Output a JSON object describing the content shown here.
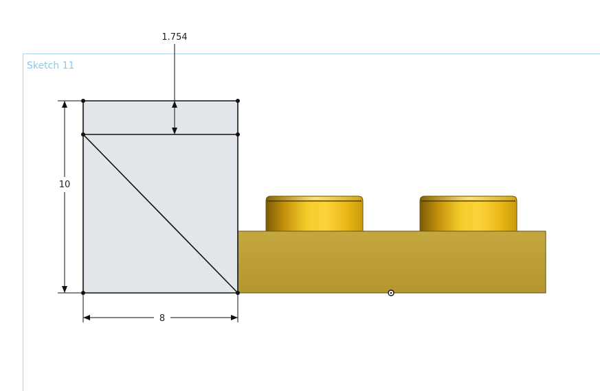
{
  "sketch": {
    "name": "Sketch 11"
  },
  "dimensions": {
    "top_offset": "1.754",
    "height": "10",
    "width": "8"
  },
  "colors": {
    "sketch_fill": "#e2e6ea",
    "sketch_line": "#111111",
    "plane_border": "#a9d4ea",
    "sketch_label": "#8fc7e6",
    "brick_body": "#b99b36",
    "brick_edge": "#6b5a1c",
    "stud_gold": "#f2c017"
  }
}
